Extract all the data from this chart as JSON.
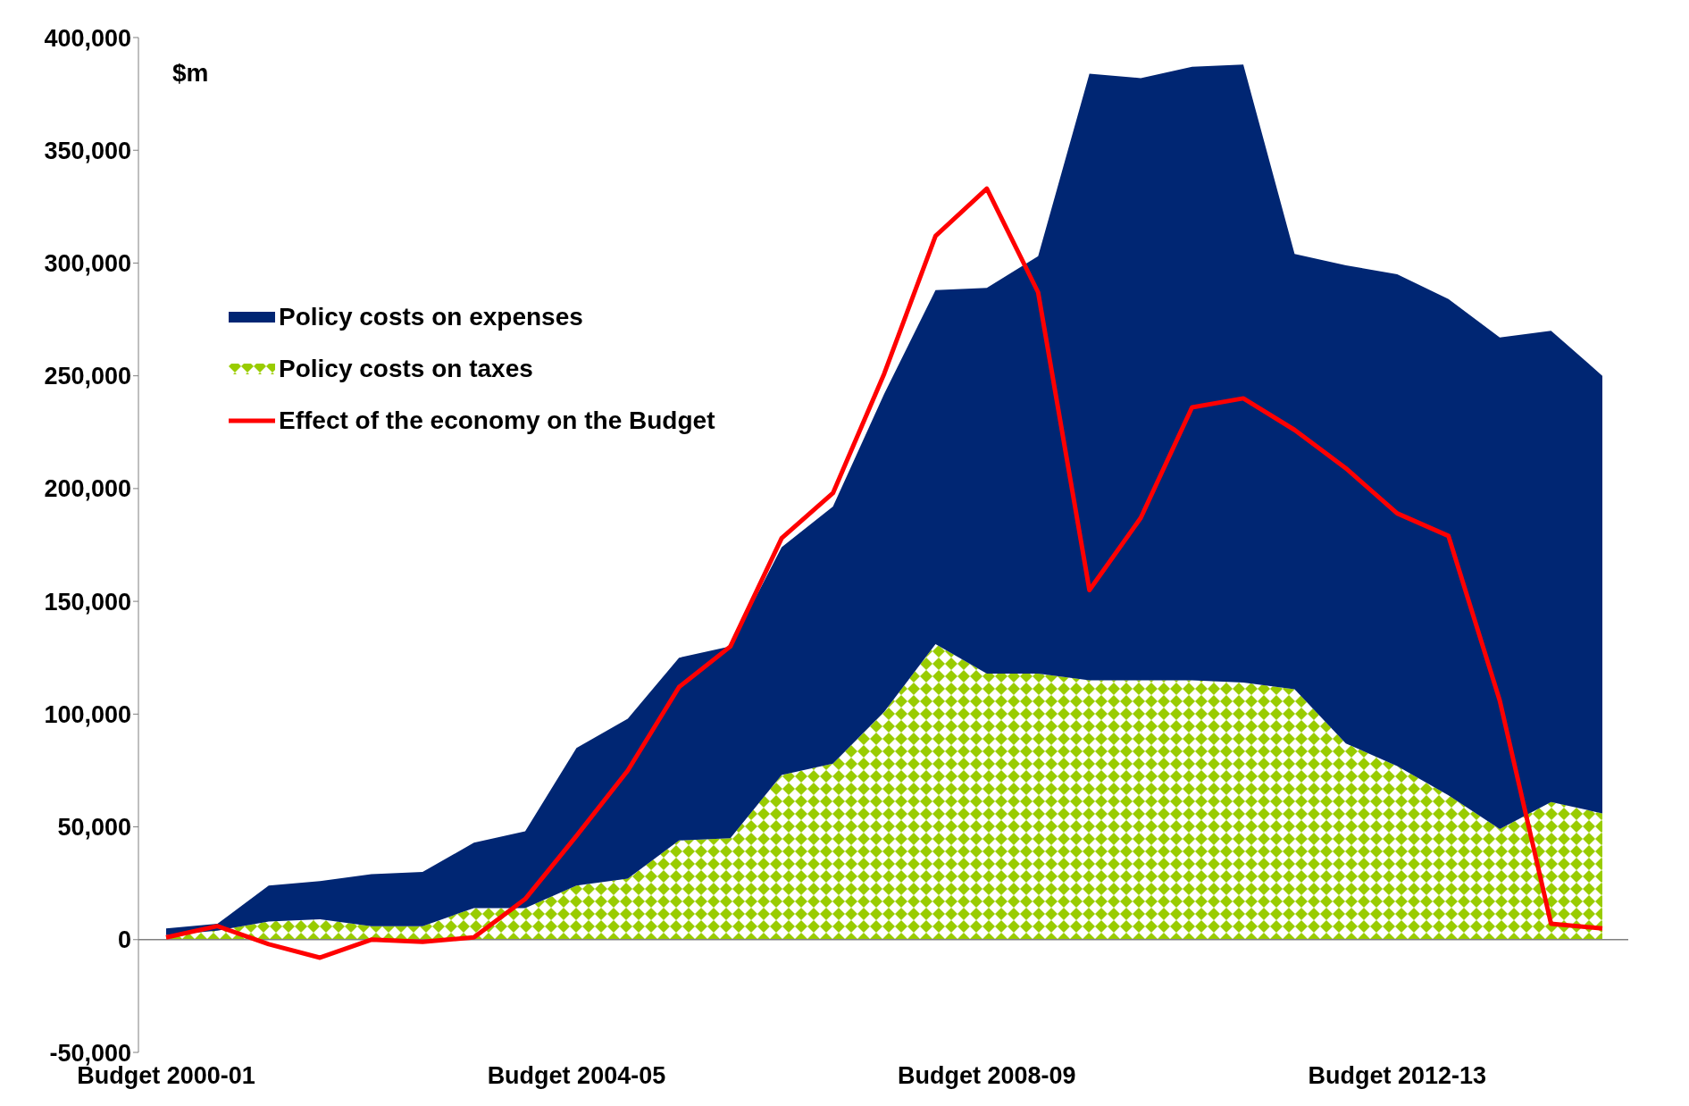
{
  "chart_data": {
    "type": "area",
    "stacked": true,
    "ylabel": "$m",
    "categories": [
      "Budget 2000-01",
      null,
      null,
      null,
      null,
      null,
      null,
      null,
      "Budget 2004-05",
      null,
      null,
      null,
      null,
      null,
      null,
      null,
      "Budget 2008-09",
      null,
      null,
      null,
      null,
      null,
      null,
      null,
      "Budget 2012-13",
      null,
      null,
      null,
      null
    ],
    "series": [
      {
        "name": "Policy costs on taxes",
        "color": "#99cc00",
        "values": [
          2000,
          4000,
          8000,
          9000,
          6000,
          6000,
          14000,
          14000,
          24000,
          27000,
          44000,
          45000,
          73000,
          78000,
          101000,
          131000,
          118000,
          118000,
          115000,
          115000,
          115000,
          114000,
          111000,
          87000,
          77000,
          64000,
          49000,
          61000,
          56000
        ]
      },
      {
        "name": "Policy costs on expenses",
        "color": "#002673",
        "values": [
          3000,
          3000,
          16000,
          17000,
          23000,
          24000,
          29000,
          34000,
          61000,
          71000,
          81000,
          85000,
          101000,
          114000,
          141000,
          157000,
          171000,
          185000,
          269000,
          267000,
          272000,
          274000,
          193000,
          212000,
          218000,
          220000,
          218000,
          209000,
          194000
        ]
      },
      {
        "name": "Effect of the economy on the Budget",
        "color": "#ff0000",
        "type": "line",
        "values": [
          1000,
          6000,
          -2000,
          -8000,
          0,
          -1000,
          1000,
          18000,
          46000,
          75000,
          112000,
          130000,
          178000,
          198000,
          251000,
          312000,
          333000,
          287000,
          155000,
          187000,
          236000,
          240000,
          226000,
          209000,
          189000,
          179000,
          106000,
          7000,
          5000
        ]
      }
    ],
    "ylim": [
      -50000,
      400000
    ],
    "yticks": [
      {
        "value": -50000,
        "label": "-50,000"
      },
      0,
      {
        "value": 50000,
        "label": "50,000"
      },
      {
        "value": 100000,
        "label": "100,000"
      },
      {
        "value": 150000,
        "label": "150,000"
      },
      {
        "value": 200000,
        "label": "200,000"
      },
      {
        "value": 250000,
        "label": "250,000"
      },
      {
        "value": 300000,
        "label": "300,000"
      },
      {
        "value": 350000,
        "label": "350,000"
      },
      {
        "value": 400000,
        "label": "400,000"
      }
    ],
    "ref_lines": [
      {
        "axis": "y",
        "value": 0,
        "color": "#808080"
      }
    ],
    "grid": false,
    "legend": "top left",
    "marker": "none",
    "line_style": "solid"
  }
}
